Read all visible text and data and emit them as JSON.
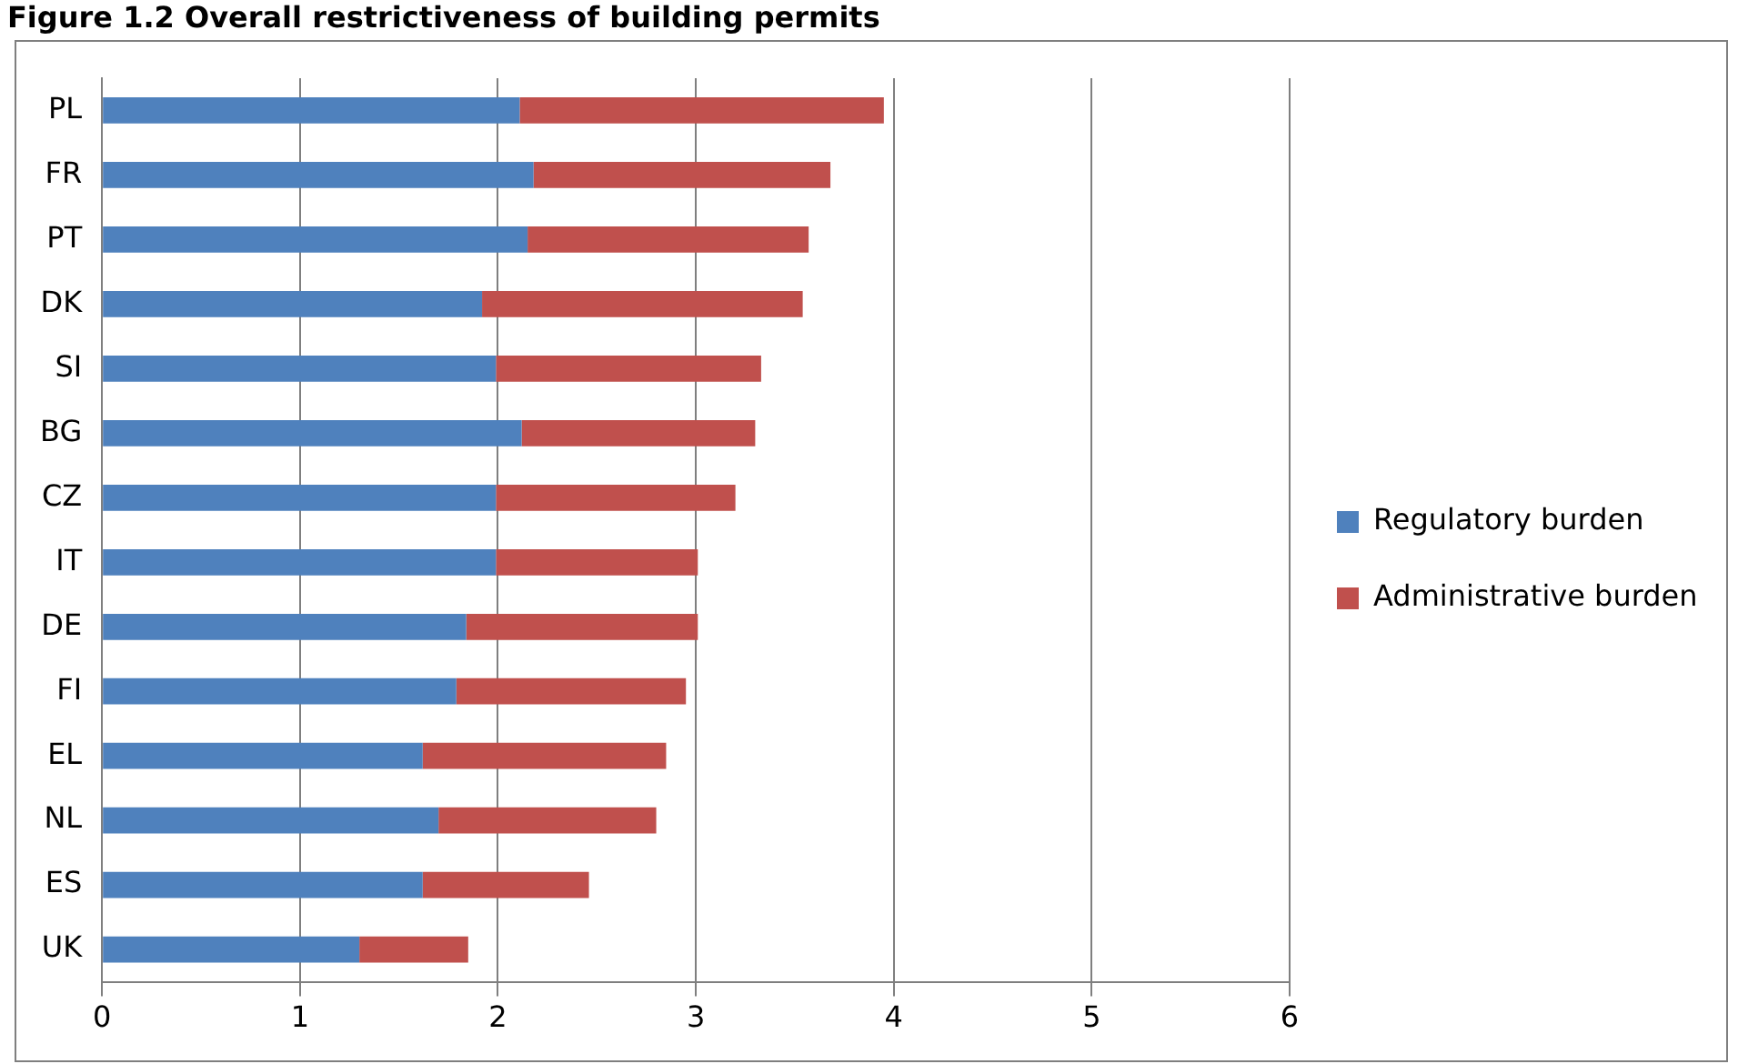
{
  "chart_data": {
    "type": "bar",
    "title": "Figure 1.2 Overall restrictiveness of building permits",
    "orientation": "horizontal",
    "stacked": true,
    "categories": [
      "PL",
      "FR",
      "PT",
      "DK",
      "SI",
      "BG",
      "CZ",
      "IT",
      "DE",
      "FI",
      "EL",
      "NL",
      "ES",
      "UK"
    ],
    "series": [
      {
        "name": "Regulatory burden",
        "color": "#4f81bd",
        "values": [
          2.11,
          2.18,
          2.15,
          1.92,
          1.99,
          2.12,
          1.99,
          1.99,
          1.84,
          1.79,
          1.62,
          1.7,
          1.62,
          1.3
        ]
      },
      {
        "name": "Administrative burden",
        "color": "#c0504d",
        "values": [
          1.84,
          1.5,
          1.42,
          1.62,
          1.34,
          1.18,
          1.21,
          1.02,
          1.17,
          1.16,
          1.23,
          1.1,
          0.84,
          0.55
        ]
      }
    ],
    "xlim": [
      0,
      6
    ],
    "xticks": [
      0,
      1,
      2,
      3,
      4,
      5,
      6
    ],
    "grid": "x",
    "legend": "right"
  }
}
